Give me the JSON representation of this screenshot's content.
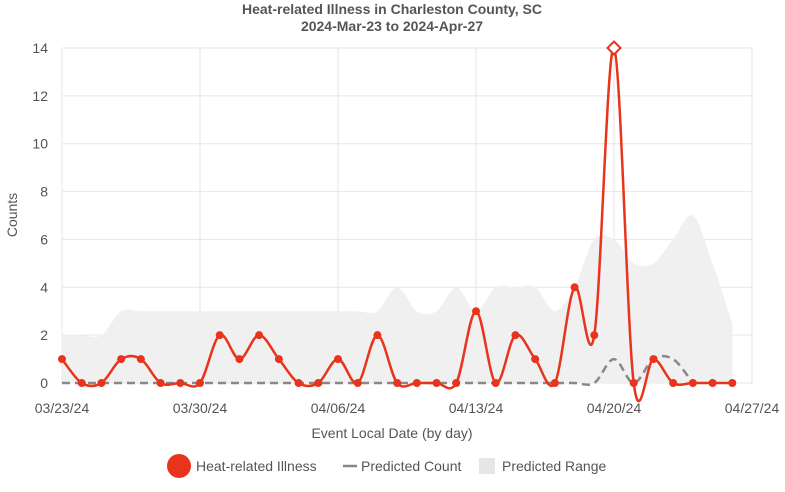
{
  "chart_data": {
    "type": "line",
    "title": "Heat-related Illness in Charleston County, SC",
    "subtitle": "2024-Mar-23 to 2024-Apr-27",
    "xlabel": "Event Local Date (by day)",
    "ylabel": "Counts",
    "ylim": [
      0,
      14
    ],
    "yticks": [
      0,
      2,
      4,
      6,
      8,
      10,
      12,
      14
    ],
    "xlim": [
      "2024-03-23",
      "2024-04-27"
    ],
    "xticks": [
      {
        "date": "2024-03-23",
        "label": "03/23/24"
      },
      {
        "date": "2024-03-30",
        "label": "03/30/24"
      },
      {
        "date": "2024-04-06",
        "label": "04/06/24"
      },
      {
        "date": "2024-04-13",
        "label": "04/13/24"
      },
      {
        "date": "2024-04-20",
        "label": "04/20/24"
      },
      {
        "date": "2024-04-27",
        "label": "04/27/24"
      }
    ],
    "grid": true,
    "legend_position": "bottom",
    "series": [
      {
        "name": "Heat-related Illness",
        "color": "#e8341c",
        "style": "solid-line-with-markers",
        "x": [
          "2024-03-23",
          "2024-03-24",
          "2024-03-25",
          "2024-03-26",
          "2024-03-27",
          "2024-03-28",
          "2024-03-29",
          "2024-03-30",
          "2024-03-31",
          "2024-04-01",
          "2024-04-02",
          "2024-04-03",
          "2024-04-04",
          "2024-04-05",
          "2024-04-06",
          "2024-04-07",
          "2024-04-08",
          "2024-04-09",
          "2024-04-10",
          "2024-04-11",
          "2024-04-12",
          "2024-04-13",
          "2024-04-14",
          "2024-04-15",
          "2024-04-16",
          "2024-04-17",
          "2024-04-18",
          "2024-04-19",
          "2024-04-20",
          "2024-04-21",
          "2024-04-22",
          "2024-04-23",
          "2024-04-24",
          "2024-04-25",
          "2024-04-26"
        ],
        "values": [
          1,
          0,
          0,
          1,
          1,
          0,
          0,
          0,
          2,
          1,
          2,
          1,
          0,
          0,
          1,
          0,
          2,
          0,
          0,
          0,
          0,
          3,
          0,
          2,
          1,
          0,
          4,
          2,
          14,
          0,
          1,
          0,
          0,
          0,
          0
        ],
        "highlight": {
          "date": "2024-04-20",
          "value": 14,
          "marker": "diamond"
        }
      },
      {
        "name": "Predicted Count",
        "color": "#888888",
        "style": "dashed",
        "x": [
          "2024-03-23",
          "2024-03-24",
          "2024-03-25",
          "2024-03-26",
          "2024-03-27",
          "2024-03-28",
          "2024-03-29",
          "2024-03-30",
          "2024-03-31",
          "2024-04-01",
          "2024-04-02",
          "2024-04-03",
          "2024-04-04",
          "2024-04-05",
          "2024-04-06",
          "2024-04-07",
          "2024-04-08",
          "2024-04-09",
          "2024-04-10",
          "2024-04-11",
          "2024-04-12",
          "2024-04-13",
          "2024-04-14",
          "2024-04-15",
          "2024-04-16",
          "2024-04-17",
          "2024-04-18",
          "2024-04-19",
          "2024-04-20",
          "2024-04-21",
          "2024-04-22",
          "2024-04-23",
          "2024-04-24"
        ],
        "values": [
          0,
          0,
          0,
          0,
          0,
          0,
          0,
          0,
          0,
          0,
          0,
          0,
          0,
          0,
          0,
          0,
          0,
          0,
          0,
          0,
          0,
          0,
          0,
          0,
          0,
          0,
          0,
          0,
          1,
          0,
          1,
          1,
          0
        ]
      },
      {
        "name": "Predicted Range",
        "color": "#f0f0f0",
        "style": "area",
        "x": [
          "2024-03-23",
          "2024-03-24",
          "2024-03-25",
          "2024-03-26",
          "2024-03-27",
          "2024-03-28",
          "2024-03-29",
          "2024-03-30",
          "2024-03-31",
          "2024-04-01",
          "2024-04-02",
          "2024-04-03",
          "2024-04-04",
          "2024-04-05",
          "2024-04-06",
          "2024-04-07",
          "2024-04-08",
          "2024-04-09",
          "2024-04-10",
          "2024-04-11",
          "2024-04-12",
          "2024-04-13",
          "2024-04-14",
          "2024-04-15",
          "2024-04-16",
          "2024-04-17",
          "2024-04-18",
          "2024-04-19",
          "2024-04-20",
          "2024-04-21",
          "2024-04-22",
          "2024-04-23",
          "2024-04-24",
          "2024-04-25",
          "2024-04-26"
        ],
        "lower": [
          0,
          0,
          0,
          0,
          0,
          0,
          0,
          0,
          0,
          0,
          0,
          0,
          0,
          0,
          0,
          0,
          0,
          0,
          0,
          0,
          0,
          0,
          0,
          0,
          0,
          0,
          0,
          0,
          0,
          0,
          0,
          0,
          0,
          0,
          0
        ],
        "upper": [
          2,
          2,
          2,
          3,
          3,
          3,
          3,
          3,
          3,
          3,
          3,
          3,
          3,
          3,
          3,
          3,
          3,
          4,
          3,
          3,
          4,
          3,
          4,
          4,
          4,
          3,
          4,
          6,
          6,
          5,
          5,
          6,
          7,
          5,
          2.5
        ]
      }
    ]
  }
}
